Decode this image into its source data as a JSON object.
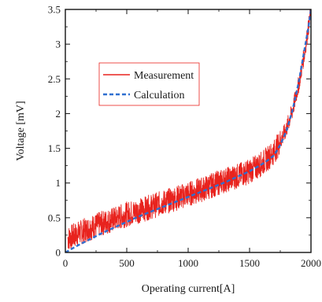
{
  "chart_data": {
    "type": "line",
    "xlabel": "Operating current[A]",
    "ylabel": "Voltage [mV]",
    "xlim": [
      0,
      2000
    ],
    "ylim": [
      0,
      3.5
    ],
    "xticks": [
      0,
      500,
      1000,
      1500,
      2000
    ],
    "yticks": [
      0,
      0.5,
      1,
      1.5,
      2,
      2.5,
      3,
      3.5
    ],
    "xtick_labels": [
      "0",
      "500",
      "1000",
      "1500",
      "2000"
    ],
    "ytick_labels": [
      "0",
      "0.5",
      "1",
      "1.5",
      "2",
      "2.5",
      "3",
      "3.5"
    ],
    "grid": false,
    "legend_position": "upper-left",
    "series": [
      {
        "name": "Measurement",
        "color": "#e8231e",
        "style": "solid-noisy",
        "x": [
          20,
          100,
          200,
          300,
          400,
          500,
          600,
          700,
          800,
          900,
          1000,
          1100,
          1200,
          1300,
          1400,
          1500,
          1600,
          1650,
          1700,
          1750,
          1800,
          1850,
          1900,
          1950,
          1980,
          2000
        ],
        "y": [
          0.2,
          0.27,
          0.35,
          0.42,
          0.48,
          0.55,
          0.6,
          0.66,
          0.72,
          0.78,
          0.84,
          0.9,
          0.97,
          1.04,
          1.1,
          1.17,
          1.28,
          1.36,
          1.45,
          1.6,
          1.78,
          2.05,
          2.42,
          2.9,
          3.25,
          3.5
        ],
        "noise_amplitude": 0.18
      },
      {
        "name": "Calculation",
        "color": "#2f6fd0",
        "style": "dashed",
        "x": [
          0,
          100,
          200,
          300,
          400,
          500,
          600,
          700,
          800,
          900,
          1000,
          1100,
          1200,
          1300,
          1400,
          1500,
          1600,
          1650,
          1700,
          1750,
          1800,
          1850,
          1900,
          1950,
          1980,
          2000
        ],
        "y": [
          0.0,
          0.1,
          0.19,
          0.28,
          0.36,
          0.44,
          0.52,
          0.59,
          0.66,
          0.73,
          0.8,
          0.87,
          0.94,
          1.01,
          1.09,
          1.17,
          1.27,
          1.33,
          1.4,
          1.55,
          1.75,
          2.05,
          2.45,
          2.95,
          3.25,
          3.5
        ]
      }
    ]
  }
}
